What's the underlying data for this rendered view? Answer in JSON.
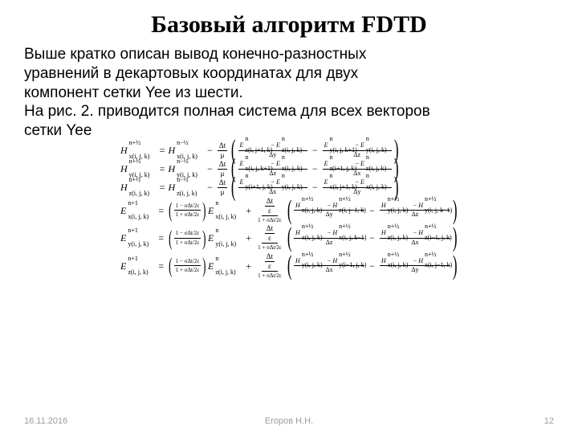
{
  "title": "Базовый алгоритм FDTD",
  "paragraph_lines": [
    "Выше кратко описан вывод конечно-разностных",
    "уравнений в декартовых координатах для двух",
    "компонент сетки Yee из шести.",
    "На рис. 2. приводится полная система для всех векторов",
    "сетки Yee"
  ],
  "footer": {
    "date": "16.11.2016",
    "author": "Егоров Н.Н.",
    "page": "12"
  },
  "sym": {
    "H": "H",
    "E": "E",
    "x": "x",
    "y": "y",
    "z": "z",
    "ijk": "(i, j, k)",
    "dt_mu_num": "Δt",
    "dt_mu_den": "μ",
    "dt_eps_num": "Δt",
    "dt_eps_den": "ε",
    "dx": "Δx",
    "dy": "Δy",
    "dz": "Δz",
    "n": "n",
    "nph": "n+½",
    "nmh": "n−½",
    "np1": "n+1",
    "coef_num": "1 − σΔt/2ε",
    "coef_den": "1 + σΔt/2ε",
    "one_plus": "1 + σΔt/2ε"
  },
  "H_eqs": [
    {
      "lhs_comp": "x",
      "idx": "(i, j, k)",
      "t1": {
        "f": "E",
        "c": "z",
        "s": "n",
        "idx": "(i, j+1, k)"
      },
      "t2": {
        "f": "E",
        "c": "z",
        "s": "n",
        "idx": "(i, j, k)"
      },
      "d1": "Δy",
      "t3": {
        "f": "E",
        "c": "y",
        "s": "n",
        "idx": "(i, j, k+1)"
      },
      "t4": {
        "f": "E",
        "c": "y",
        "s": "n",
        "idx": "(i, j, k)"
      },
      "d2": "Δz"
    },
    {
      "lhs_comp": "y",
      "idx": "(i, j, k)",
      "t1": {
        "f": "E",
        "c": "x",
        "s": "n",
        "idx": "(i, j, k+1)"
      },
      "t2": {
        "f": "E",
        "c": "x",
        "s": "n",
        "idx": "(i, j, k)"
      },
      "d1": "Δz",
      "t3": {
        "f": "E",
        "c": "z",
        "s": "n",
        "idx": "(i+1, j, k)"
      },
      "t4": {
        "f": "E",
        "c": "z",
        "s": "n",
        "idx": "(i, j, k)"
      },
      "d2": "Δx"
    },
    {
      "lhs_comp": "z",
      "idx": "(i, j, k)",
      "t1": {
        "f": "E",
        "c": "y",
        "s": "n",
        "idx": "(i+1, j, k)"
      },
      "t2": {
        "f": "E",
        "c": "y",
        "s": "n",
        "idx": "(i, j, k)"
      },
      "d1": "Δx",
      "t3": {
        "f": "E",
        "c": "x",
        "s": "n",
        "idx": "(i, j+1, k)"
      },
      "t4": {
        "f": "E",
        "c": "x",
        "s": "n",
        "idx": "(i, j, k)"
      },
      "d2": "Δy"
    }
  ],
  "E_eqs": [
    {
      "lhs_comp": "x",
      "idx": "(i, j, k)",
      "t1": {
        "f": "H",
        "c": "z",
        "s": "n+½",
        "idx": "(i, j, k)"
      },
      "t2": {
        "f": "H",
        "c": "z",
        "s": "n+½",
        "idx": "(i, j−1, k)"
      },
      "d1": "Δy",
      "t3": {
        "f": "H",
        "c": "y",
        "s": "n+½",
        "idx": "(i, j, k)"
      },
      "t4": {
        "f": "H",
        "c": "y",
        "s": "n+½",
        "idx": "(i, j, k−1)"
      },
      "d2": "Δz"
    },
    {
      "lhs_comp": "y",
      "idx": "(i, j, k)",
      "t1": {
        "f": "H",
        "c": "x",
        "s": "n+½",
        "idx": "(i, j, k)"
      },
      "t2": {
        "f": "H",
        "c": "x",
        "s": "n+½",
        "idx": "(i, j, k−1)"
      },
      "d1": "Δz",
      "t3": {
        "f": "H",
        "c": "z",
        "s": "n+½",
        "idx": "(i, j, k)"
      },
      "t4": {
        "f": "H",
        "c": "z",
        "s": "n+½",
        "idx": "(i−1, j, k)"
      },
      "d2": "Δx"
    },
    {
      "lhs_comp": "z",
      "idx": "(i, j, k)",
      "t1": {
        "f": "H",
        "c": "y",
        "s": "n+½",
        "idx": "(i, j, k)"
      },
      "t2": {
        "f": "H",
        "c": "y",
        "s": "n+½",
        "idx": "(i−1, j, k)"
      },
      "d1": "Δx",
      "t3": {
        "f": "H",
        "c": "x",
        "s": "n+½",
        "idx": "(i, j, k)"
      },
      "t4": {
        "f": "H",
        "c": "x",
        "s": "n+½",
        "idx": "(i, j−1, k)"
      },
      "d2": "Δy"
    }
  ]
}
